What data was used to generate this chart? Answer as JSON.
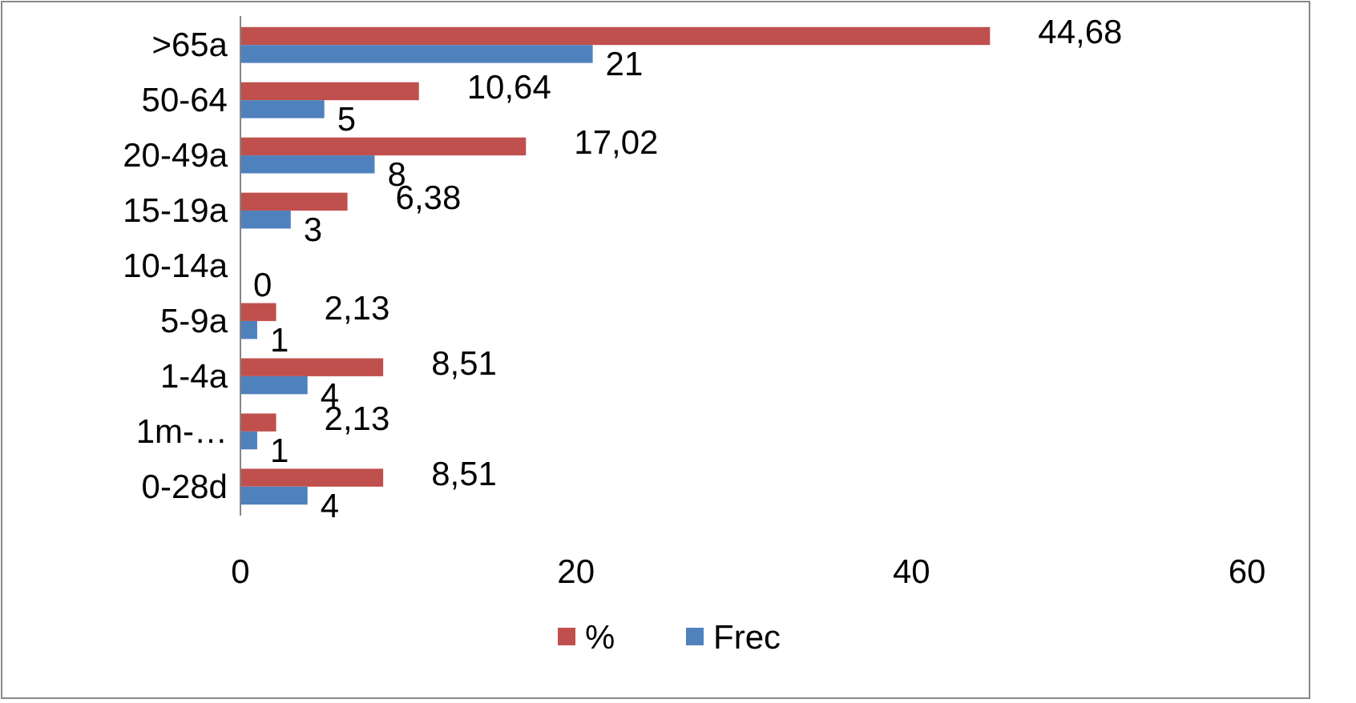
{
  "chart_data": {
    "type": "bar",
    "orientation": "horizontal",
    "categories": [
      ">65a",
      "50-64",
      "20-49a",
      "15-19a",
      "10-14a",
      "5-9a",
      "1-4a",
      "1m-…",
      "0-28d"
    ],
    "series": [
      {
        "name": "%",
        "color": "#c0504d",
        "values": [
          44.68,
          10.64,
          17.02,
          6.38,
          0,
          2.13,
          8.51,
          2.13,
          8.51
        ],
        "value_labels": [
          "44,68",
          "10,64",
          "17,02",
          "6,38",
          null,
          "2,13",
          "8,51",
          "2,13",
          "8,51"
        ]
      },
      {
        "name": "Frec",
        "color": "#4f81bd",
        "values": [
          21,
          5,
          8,
          3,
          0,
          1,
          4,
          1,
          4
        ],
        "value_labels": [
          "21",
          "5",
          "8",
          "3",
          "0",
          "1",
          "4",
          "1",
          "4"
        ]
      }
    ],
    "xlim": [
      0,
      60
    ],
    "xticks": [
      0,
      20,
      40,
      60
    ],
    "grid": false,
    "legend": "bottom"
  }
}
